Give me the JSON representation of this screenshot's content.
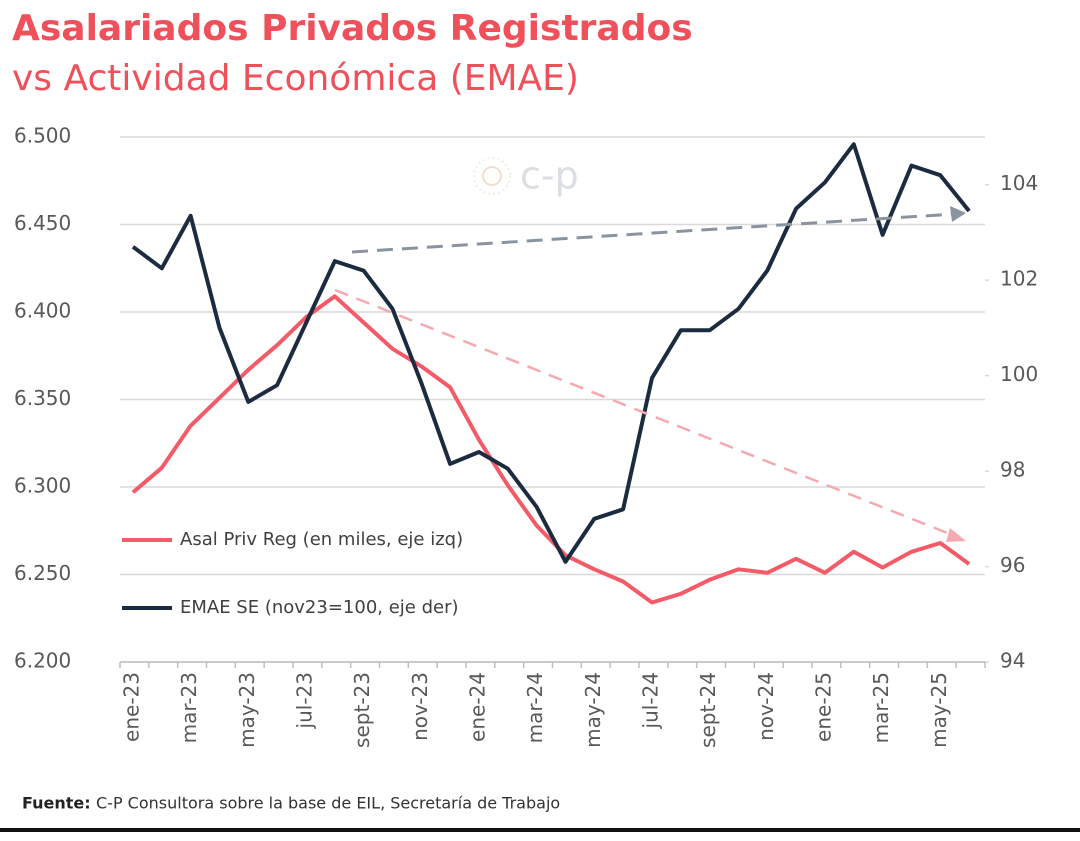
{
  "chart_data": {
    "type": "line",
    "title": "Asalariados Privados Registrados",
    "subtitle": "vs Actividad Económica (EMAE)",
    "watermark": "c-p",
    "categories": [
      "ene-23",
      null,
      "mar-23",
      null,
      "may-23",
      null,
      "jul-23",
      null,
      "sept-23",
      null,
      "nov-23",
      null,
      "ene-24",
      null,
      "mar-24",
      null,
      "may-24",
      null,
      "jul-24",
      null,
      "sept-24",
      null,
      "nov-24",
      null,
      "ene-25",
      null,
      "mar-25",
      null,
      "may-25",
      null
    ],
    "series": [
      {
        "name": "Asal Priv Reg (en miles, eje izq)",
        "color": "#f45b69",
        "values": [
          6297,
          6311,
          6335,
          6351,
          6367,
          6381,
          6397,
          6409,
          6394,
          6379,
          6369,
          6357,
          6327,
          6301,
          6278,
          6261,
          6253,
          6246,
          6234,
          6239,
          6247,
          6253,
          6251,
          6259,
          6251,
          6263,
          6254,
          6263,
          6268,
          6256
        ]
      },
      {
        "name": "EMAE SE (nov23=100, eje der)",
        "color": "#1c2b3f",
        "axis": "y2",
        "values": [
          102.7,
          102.25,
          103.35,
          101.0,
          99.45,
          99.8,
          101.1,
          102.4,
          102.2,
          101.4,
          99.85,
          98.15,
          98.4,
          98.05,
          97.25,
          96.1,
          97.0,
          97.2,
          99.95,
          100.95,
          100.95,
          101.4,
          102.2,
          103.5,
          104.05,
          104.85,
          102.95,
          104.4,
          104.2,
          103.45
        ]
      }
    ],
    "ylim": [
      6200,
      6500
    ],
    "yticks": [
      {
        "value": 6200,
        "label": "6.200"
      },
      {
        "value": 6250,
        "label": "6.250"
      },
      {
        "value": 6300,
        "label": "6.300"
      },
      {
        "value": 6350,
        "label": "6.350"
      },
      {
        "value": 6400,
        "label": "6.400"
      },
      {
        "value": 6450,
        "label": "6.450"
      },
      {
        "value": 6500,
        "label": "6.500"
      }
    ],
    "y2lim": [
      94,
      105
    ],
    "y2ticks": [
      94,
      96,
      98,
      100,
      102,
      104
    ],
    "grid": true,
    "source_label": "Fuente:",
    "source": "C-P Consultora sobre la base de EIL, Secretaría de Trabajo"
  }
}
